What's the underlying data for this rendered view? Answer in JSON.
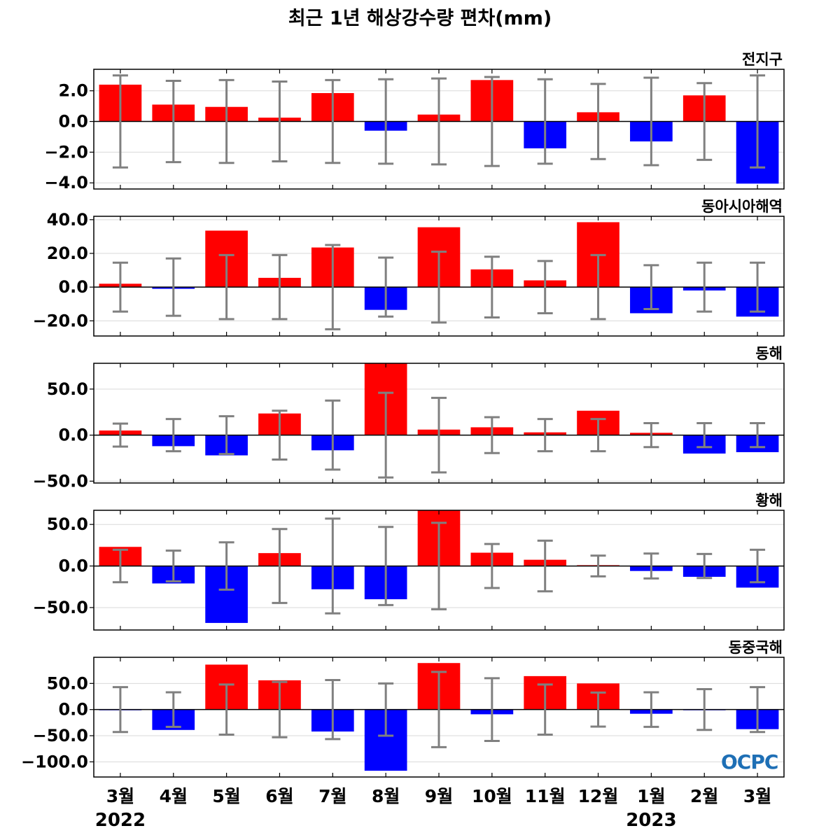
{
  "title": "최근 1년 해상강수량 편차(mm)",
  "logo_text": "OCPC",
  "colors": {
    "positive": "#ff0000",
    "negative": "#0000ff",
    "errorbar": "#808080",
    "grid": "#d9d9d9",
    "zero_line": "#000000"
  },
  "chart_data": {
    "type": "bar",
    "categories": [
      "3월",
      "4월",
      "5월",
      "6월",
      "7월",
      "8월",
      "9월",
      "10월",
      "11월",
      "12월",
      "1월",
      "2월",
      "3월"
    ],
    "year_labels": [
      {
        "category_index": 0,
        "text": "2022"
      },
      {
        "category_index": 10,
        "text": "2023"
      }
    ],
    "panels": [
      {
        "title": "전지구",
        "ylim": [
          -4.4,
          3.4
        ],
        "yticks": [
          2.0,
          0.0,
          -2.0,
          -4.0
        ],
        "tick_labels": [
          "2.0",
          "0.0",
          "−2.0",
          "−4.0"
        ],
        "values": [
          2.4,
          1.1,
          0.95,
          0.25,
          1.85,
          -0.6,
          0.45,
          2.7,
          -1.75,
          0.6,
          -1.3,
          1.7,
          -4.05
        ],
        "error": [
          3.0,
          2.65,
          2.7,
          2.6,
          2.7,
          2.75,
          2.8,
          2.9,
          2.75,
          2.45,
          2.85,
          2.5,
          3.0
        ]
      },
      {
        "title": "동아시아해역",
        "ylim": [
          -29,
          42
        ],
        "yticks": [
          40.0,
          20.0,
          0.0,
          -20.0
        ],
        "tick_labels": [
          "40.0",
          "20.0",
          "0.0",
          "−20.0"
        ],
        "values": [
          2.0,
          -1.0,
          33.5,
          5.5,
          23.5,
          -13.5,
          35.5,
          10.5,
          4.0,
          38.5,
          -15.5,
          -2.0,
          -17.5
        ],
        "error": [
          14.5,
          17.0,
          19.0,
          19.0,
          25.0,
          17.5,
          21.0,
          18.0,
          15.5,
          19.0,
          13.0,
          14.5,
          14.5
        ]
      },
      {
        "title": "동해",
        "ylim": [
          -52,
          78
        ],
        "yticks": [
          50.0,
          0.0,
          -50.0
        ],
        "tick_labels": [
          "50.0",
          "0.0",
          "−50.0"
        ],
        "values": [
          5.0,
          -12.0,
          -22.0,
          23.5,
          -16.5,
          78.0,
          6.0,
          8.5,
          3.0,
          26.5,
          2.5,
          -20.0,
          -18.5
        ],
        "error": [
          12.5,
          17.5,
          20.5,
          26.5,
          37.5,
          46.0,
          40.5,
          19.5,
          17.5,
          17.5,
          13.0,
          13.0,
          13.0
        ]
      },
      {
        "title": "황해",
        "ylim": [
          -77,
          67
        ],
        "yticks": [
          50.0,
          0.0,
          -50.0
        ],
        "tick_labels": [
          "50.0",
          "0.0",
          "−50.0"
        ],
        "values": [
          23.0,
          -21.0,
          -68.5,
          15.5,
          -28.0,
          -40.0,
          67.0,
          16.0,
          7.5,
          1.0,
          -6.0,
          -13.0,
          -26.0
        ],
        "error": [
          19.5,
          18.5,
          28.5,
          44.5,
          57.0,
          47.0,
          52.0,
          26.5,
          30.5,
          12.5,
          15.0,
          14.5,
          19.5
        ]
      },
      {
        "title": "동중국해",
        "ylim": [
          -129,
          100
        ],
        "yticks": [
          50.0,
          0.0,
          -50.0,
          -100.0
        ],
        "tick_labels": [
          "50.0",
          "0.0",
          "−50.0",
          "−100.0"
        ],
        "values": [
          -1.0,
          -39.0,
          86.0,
          56.0,
          -42.0,
          -117.0,
          89.0,
          -9.0,
          64.0,
          50.0,
          -8.0,
          -1.0,
          -37.5
        ],
        "error": [
          43.0,
          33.0,
          48.0,
          53.0,
          56.5,
          50.0,
          72.0,
          60.0,
          48.0,
          32.5,
          33.0,
          39.0,
          43.0
        ]
      }
    ]
  }
}
